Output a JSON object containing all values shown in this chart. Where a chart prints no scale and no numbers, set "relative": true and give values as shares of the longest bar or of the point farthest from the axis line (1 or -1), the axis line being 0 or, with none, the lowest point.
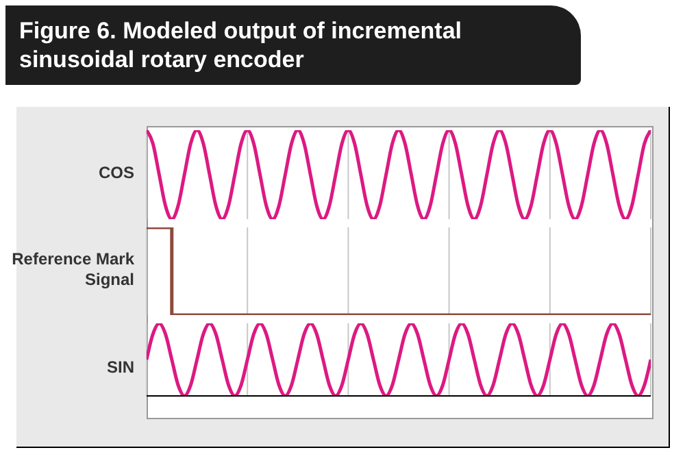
{
  "chart_data": [
    {
      "type": "line",
      "title": "Figure 6. Modeled output of incremental sinusoidal rotary encoder",
      "ylabel": "COS",
      "relative": true,
      "grid": "x",
      "tick_labels": false,
      "categories": [
        null,
        null,
        null,
        null,
        null,
        null,
        null,
        null,
        null,
        null,
        null,
        null,
        null,
        null,
        null,
        null,
        null,
        null,
        null,
        null,
        null,
        null,
        null,
        null,
        null,
        null,
        null,
        null,
        null,
        null,
        null,
        null,
        null,
        null,
        null,
        null,
        null,
        null,
        null,
        null,
        null,
        null,
        null,
        null,
        null,
        null,
        null,
        null,
        null,
        null,
        null,
        null,
        null,
        null,
        null,
        null,
        null,
        null,
        null,
        null,
        null,
        null,
        null,
        null,
        null,
        null,
        null,
        null,
        null,
        null,
        null,
        null,
        null,
        null,
        null,
        null,
        null,
        null,
        null,
        null,
        null
      ],
      "series": [
        {
          "color": "#dc1a82",
          "values": [
            1,
            0.85,
            0.5,
            0.15,
            0,
            0.15,
            0.5,
            0.85,
            1,
            0.85,
            0.5,
            0.15,
            0,
            0.15,
            0.5,
            0.85,
            1,
            0.85,
            0.5,
            0.15,
            0,
            0.15,
            0.5,
            0.85,
            1,
            0.85,
            0.5,
            0.15,
            0,
            0.15,
            0.5,
            0.85,
            1,
            0.85,
            0.5,
            0.15,
            0,
            0.15,
            0.5,
            0.85,
            1,
            0.85,
            0.5,
            0.15,
            0,
            0.15,
            0.5,
            0.85,
            1,
            0.85,
            0.5,
            0.15,
            0,
            0.15,
            0.5,
            0.85,
            1,
            0.85,
            0.5,
            0.15,
            0,
            0.15,
            0.5,
            0.85,
            1,
            0.85,
            0.5,
            0.15,
            0,
            0.15,
            0.5,
            0.85,
            1,
            0.85,
            0.5,
            0.15,
            0,
            0.15,
            0.5,
            0.85,
            1
          ]
        }
      ]
    },
    {
      "type": "step",
      "ylabel": "Reference Mark Signal",
      "relative": true,
      "grid": "x",
      "tick_labels": false,
      "categories": [
        null,
        null,
        null,
        null,
        null,
        null,
        null,
        null,
        null,
        null,
        null,
        null,
        null,
        null,
        null,
        null,
        null,
        null,
        null,
        null,
        null,
        null,
        null,
        null,
        null,
        null,
        null,
        null,
        null,
        null,
        null,
        null,
        null,
        null,
        null,
        null,
        null,
        null,
        null,
        null,
        null,
        null,
        null,
        null,
        null,
        null,
        null,
        null,
        null,
        null,
        null,
        null,
        null,
        null,
        null,
        null,
        null,
        null,
        null,
        null,
        null,
        null,
        null,
        null,
        null,
        null,
        null,
        null,
        null,
        null,
        null,
        null,
        null,
        null,
        null,
        null,
        null,
        null,
        null,
        null,
        null
      ],
      "series": [
        {
          "color": "#8e4b3c",
          "values": [
            1,
            1,
            1,
            1,
            0,
            0,
            0,
            0,
            0,
            0,
            0,
            0,
            0,
            0,
            0,
            0,
            0,
            0,
            0,
            0,
            0,
            0,
            0,
            0,
            0,
            0,
            0,
            0,
            0,
            0,
            0,
            0,
            0,
            0,
            0,
            0,
            0,
            0,
            0,
            0,
            0,
            0,
            0,
            0,
            0,
            0,
            0,
            0,
            0,
            0,
            0,
            0,
            0,
            0,
            0,
            0,
            0,
            0,
            0,
            0,
            0,
            0,
            0,
            0,
            0,
            0,
            0,
            0,
            0,
            0,
            0,
            0,
            0,
            0,
            0,
            0,
            0,
            0,
            0,
            0,
            0
          ]
        }
      ]
    },
    {
      "type": "line",
      "ylabel": "SIN",
      "relative": true,
      "grid": "x",
      "tick_labels": false,
      "categories": [
        null,
        null,
        null,
        null,
        null,
        null,
        null,
        null,
        null,
        null,
        null,
        null,
        null,
        null,
        null,
        null,
        null,
        null,
        null,
        null,
        null,
        null,
        null,
        null,
        null,
        null,
        null,
        null,
        null,
        null,
        null,
        null,
        null,
        null,
        null,
        null,
        null,
        null,
        null,
        null,
        null,
        null,
        null,
        null,
        null,
        null,
        null,
        null,
        null,
        null,
        null,
        null,
        null,
        null,
        null,
        null,
        null,
        null,
        null,
        null,
        null,
        null,
        null,
        null,
        null,
        null,
        null,
        null,
        null,
        null,
        null,
        null,
        null,
        null,
        null,
        null,
        null,
        null,
        null,
        null,
        null
      ],
      "series": [
        {
          "color": "#dc1a82",
          "values": [
            0.5,
            0.85,
            1,
            0.85,
            0.5,
            0.15,
            0,
            0.15,
            0.5,
            0.85,
            1,
            0.85,
            0.5,
            0.15,
            0,
            0.15,
            0.5,
            0.85,
            1,
            0.85,
            0.5,
            0.15,
            0,
            0.15,
            0.5,
            0.85,
            1,
            0.85,
            0.5,
            0.15,
            0,
            0.15,
            0.5,
            0.85,
            1,
            0.85,
            0.5,
            0.15,
            0,
            0.15,
            0.5,
            0.85,
            1,
            0.85,
            0.5,
            0.15,
            0,
            0.15,
            0.5,
            0.85,
            1,
            0.85,
            0.5,
            0.15,
            0,
            0.15,
            0.5,
            0.85,
            1,
            0.85,
            0.5,
            0.15,
            0,
            0.15,
            0.5,
            0.85,
            1,
            0.85,
            0.5,
            0.15,
            0,
            0.15,
            0.5,
            0.85,
            1,
            0.85,
            0.5,
            0.15,
            0,
            0.15,
            0.5
          ]
        }
      ]
    }
  ]
}
